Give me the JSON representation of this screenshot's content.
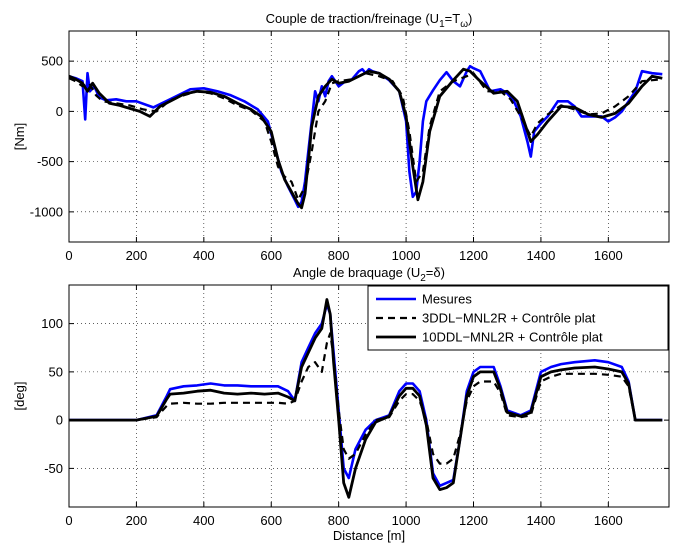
{
  "chart_data": [
    {
      "type": "line",
      "title_main": "Couple de traction/freinage (U",
      "title_sub1": "1",
      "title_mid": "=T",
      "title_sub2": "ω",
      "title_end": ")",
      "xlabel": "",
      "ylabel": "[Nm]",
      "xlim": [
        0,
        1780
      ],
      "ylim": [
        -1300,
        800
      ],
      "xticks": [
        0,
        200,
        400,
        600,
        800,
        1000,
        1200,
        1400,
        1600
      ],
      "yticks": [
        -1000,
        -500,
        0,
        500
      ],
      "grid": true,
      "series": [
        {
          "color": "#0000ff",
          "width": 2.6,
          "dash": "",
          "x": [
            0,
            20,
            40,
            48,
            55,
            62,
            75,
            90,
            110,
            140,
            170,
            200,
            250,
            300,
            330,
            360,
            400,
            440,
            480,
            520,
            560,
            590,
            610,
            630,
            650,
            670,
            680,
            690,
            700,
            710,
            720,
            730,
            740,
            750,
            760,
            770,
            780,
            790,
            800,
            820,
            840,
            860,
            870,
            880,
            890,
            900,
            920,
            950,
            980,
            1000,
            1010,
            1020,
            1030,
            1040,
            1050,
            1060,
            1080,
            1100,
            1120,
            1140,
            1160,
            1180,
            1190,
            1200,
            1220,
            1250,
            1280,
            1300,
            1320,
            1340,
            1360,
            1370,
            1380,
            1400,
            1420,
            1450,
            1480,
            1500,
            1520,
            1550,
            1580,
            1600,
            1620,
            1640,
            1660,
            1680,
            1700,
            1730,
            1760
          ],
          "y": [
            350,
            330,
            300,
            -80,
            380,
            200,
            250,
            140,
            110,
            120,
            100,
            100,
            40,
            120,
            170,
            220,
            230,
            200,
            160,
            100,
            20,
            -100,
            -350,
            -600,
            -750,
            -880,
            -950,
            -900,
            -700,
            -400,
            -100,
            200,
            100,
            250,
            150,
            300,
            350,
            300,
            250,
            300,
            320,
            400,
            420,
            380,
            420,
            400,
            380,
            310,
            200,
            -100,
            -600,
            -850,
            -800,
            -500,
            -100,
            100,
            210,
            310,
            390,
            300,
            250,
            400,
            450,
            430,
            400,
            200,
            220,
            180,
            100,
            -50,
            -300,
            -450,
            -200,
            -120,
            -50,
            100,
            100,
            50,
            -50,
            -50,
            -50,
            -100,
            -60,
            0,
            100,
            200,
            400,
            380,
            370
          ]
        },
        {
          "color": "#000000",
          "width": 2.2,
          "dash": "7,5",
          "x": [
            0,
            20,
            40,
            60,
            80,
            100,
            140,
            180,
            220,
            260,
            300,
            340,
            380,
            420,
            460,
            500,
            540,
            580,
            600,
            620,
            640,
            660,
            680,
            700,
            720,
            740,
            760,
            780,
            800,
            840,
            880,
            920,
            960,
            990,
            1010,
            1030,
            1050,
            1070,
            1100,
            1140,
            1180,
            1200,
            1240,
            1280,
            1310,
            1340,
            1370,
            1390,
            1420,
            1460,
            1500,
            1540,
            1580,
            1620,
            1660,
            1700,
            1760
          ],
          "y": [
            330,
            300,
            250,
            280,
            160,
            100,
            80,
            60,
            20,
            0,
            110,
            160,
            200,
            180,
            130,
            60,
            10,
            -100,
            -300,
            -550,
            -650,
            -700,
            -880,
            -750,
            -400,
            0,
            100,
            280,
            300,
            320,
            380,
            350,
            300,
            150,
            -200,
            -700,
            -600,
            -150,
            200,
            300,
            350,
            380,
            200,
            200,
            120,
            -50,
            -250,
            -120,
            -30,
            60,
            20,
            -30,
            -20,
            50,
            150,
            300,
            320
          ]
        },
        {
          "color": "#000000",
          "width": 2.8,
          "dash": "",
          "x": [
            0,
            20,
            40,
            55,
            70,
            90,
            120,
            150,
            180,
            210,
            240,
            270,
            300,
            340,
            380,
            420,
            460,
            500,
            540,
            570,
            600,
            620,
            640,
            660,
            670,
            680,
            690,
            700,
            710,
            720,
            740,
            760,
            780,
            800,
            830,
            860,
            890,
            920,
            950,
            980,
            1000,
            1020,
            1035,
            1050,
            1070,
            1100,
            1140,
            1170,
            1190,
            1220,
            1260,
            1300,
            1330,
            1350,
            1370,
            1390,
            1420,
            1460,
            1500,
            1540,
            1580,
            1620,
            1660,
            1700,
            1730,
            1760
          ],
          "y": [
            350,
            320,
            280,
            200,
            280,
            180,
            80,
            60,
            30,
            0,
            -50,
            50,
            100,
            170,
            200,
            190,
            150,
            80,
            20,
            -50,
            -200,
            -480,
            -680,
            -800,
            -860,
            -920,
            -960,
            -820,
            -500,
            -150,
            150,
            250,
            320,
            280,
            300,
            350,
            400,
            380,
            320,
            200,
            -50,
            -550,
            -880,
            -700,
            -200,
            150,
            310,
            420,
            400,
            300,
            180,
            200,
            100,
            -100,
            -300,
            -230,
            -100,
            50,
            40,
            -30,
            -60,
            -20,
            80,
            250,
            350,
            330
          ]
        }
      ]
    },
    {
      "type": "line",
      "title_main": "Angle de braquage (U",
      "title_sub1": "2",
      "title_mid": "=δ",
      "title_sub2": "",
      "title_end": ")",
      "xlabel": "Distance [m]",
      "ylabel": "[deg]",
      "xlim": [
        0,
        1780
      ],
      "ylim": [
        -90,
        140
      ],
      "xticks": [
        0,
        200,
        400,
        600,
        800,
        1000,
        1200,
        1400,
        1600
      ],
      "yticks": [
        -50,
        0,
        50,
        100
      ],
      "grid": true,
      "legend": {
        "location": "top-right",
        "entries": [
          "Mesures",
          "3DDL−MNL2R + Contrôle plat",
          "10DDL−MNL2R + Contrôle plat"
        ]
      },
      "series": [
        {
          "color": "#0000ff",
          "width": 2.6,
          "dash": "",
          "x": [
            0,
            100,
            200,
            260,
            290,
            300,
            340,
            380,
            420,
            460,
            500,
            540,
            580,
            620,
            650,
            670,
            690,
            710,
            730,
            750,
            765,
            775,
            785,
            800,
            815,
            830,
            850,
            880,
            910,
            950,
            980,
            1000,
            1020,
            1040,
            1060,
            1080,
            1100,
            1120,
            1140,
            1160,
            1180,
            1200,
            1220,
            1260,
            1280,
            1300,
            1340,
            1370,
            1400,
            1430,
            1460,
            1500,
            1560,
            1600,
            1640,
            1660,
            1680,
            1700,
            1760
          ],
          "y": [
            0,
            0,
            0,
            5,
            25,
            32,
            35,
            36,
            38,
            36,
            36,
            35,
            35,
            35,
            30,
            20,
            60,
            75,
            90,
            100,
            120,
            110,
            70,
            10,
            -50,
            -60,
            -30,
            -10,
            0,
            5,
            30,
            38,
            38,
            30,
            0,
            -55,
            -68,
            -65,
            -62,
            -20,
            30,
            50,
            55,
            55,
            35,
            10,
            5,
            10,
            50,
            55,
            58,
            60,
            62,
            60,
            55,
            40,
            0,
            0,
            0
          ]
        },
        {
          "color": "#000000",
          "width": 2.2,
          "dash": "7,5",
          "x": [
            0,
            100,
            200,
            260,
            290,
            300,
            340,
            380,
            420,
            460,
            500,
            540,
            580,
            620,
            650,
            670,
            690,
            710,
            730,
            750,
            765,
            775,
            785,
            800,
            815,
            830,
            850,
            880,
            910,
            950,
            980,
            1000,
            1020,
            1040,
            1060,
            1080,
            1100,
            1120,
            1140,
            1160,
            1180,
            1200,
            1220,
            1260,
            1280,
            1300,
            1340,
            1370,
            1400,
            1430,
            1460,
            1500,
            1560,
            1600,
            1640,
            1660,
            1680,
            1700,
            1760
          ],
          "y": [
            0,
            0,
            0,
            3,
            15,
            17,
            18,
            17,
            17,
            18,
            18,
            18,
            18,
            18,
            17,
            20,
            40,
            55,
            60,
            50,
            80,
            90,
            65,
            10,
            -30,
            -40,
            -35,
            -15,
            0,
            3,
            20,
            27,
            27,
            20,
            0,
            -35,
            -45,
            -45,
            -40,
            -15,
            20,
            35,
            40,
            40,
            28,
            5,
            3,
            5,
            40,
            45,
            48,
            48,
            48,
            47,
            45,
            35,
            0,
            0,
            0
          ]
        },
        {
          "color": "#000000",
          "width": 2.8,
          "dash": "",
          "x": [
            0,
            100,
            200,
            260,
            290,
            300,
            340,
            380,
            420,
            460,
            500,
            540,
            580,
            620,
            650,
            670,
            690,
            710,
            730,
            750,
            765,
            775,
            785,
            800,
            815,
            830,
            850,
            880,
            910,
            950,
            980,
            1000,
            1020,
            1040,
            1060,
            1080,
            1100,
            1120,
            1140,
            1160,
            1180,
            1200,
            1220,
            1260,
            1280,
            1300,
            1340,
            1370,
            1400,
            1430,
            1460,
            1500,
            1560,
            1600,
            1640,
            1660,
            1680,
            1700,
            1760
          ],
          "y": [
            0,
            0,
            0,
            4,
            22,
            27,
            28,
            30,
            31,
            28,
            27,
            28,
            27,
            28,
            24,
            20,
            55,
            70,
            85,
            95,
            125,
            110,
            60,
            0,
            -65,
            -80,
            -50,
            -20,
            -2,
            4,
            25,
            33,
            33,
            25,
            -5,
            -60,
            -72,
            -70,
            -65,
            -20,
            25,
            45,
            50,
            50,
            32,
            8,
            4,
            8,
            45,
            50,
            52,
            54,
            55,
            53,
            50,
            38,
            0,
            0,
            0
          ]
        }
      ]
    }
  ]
}
